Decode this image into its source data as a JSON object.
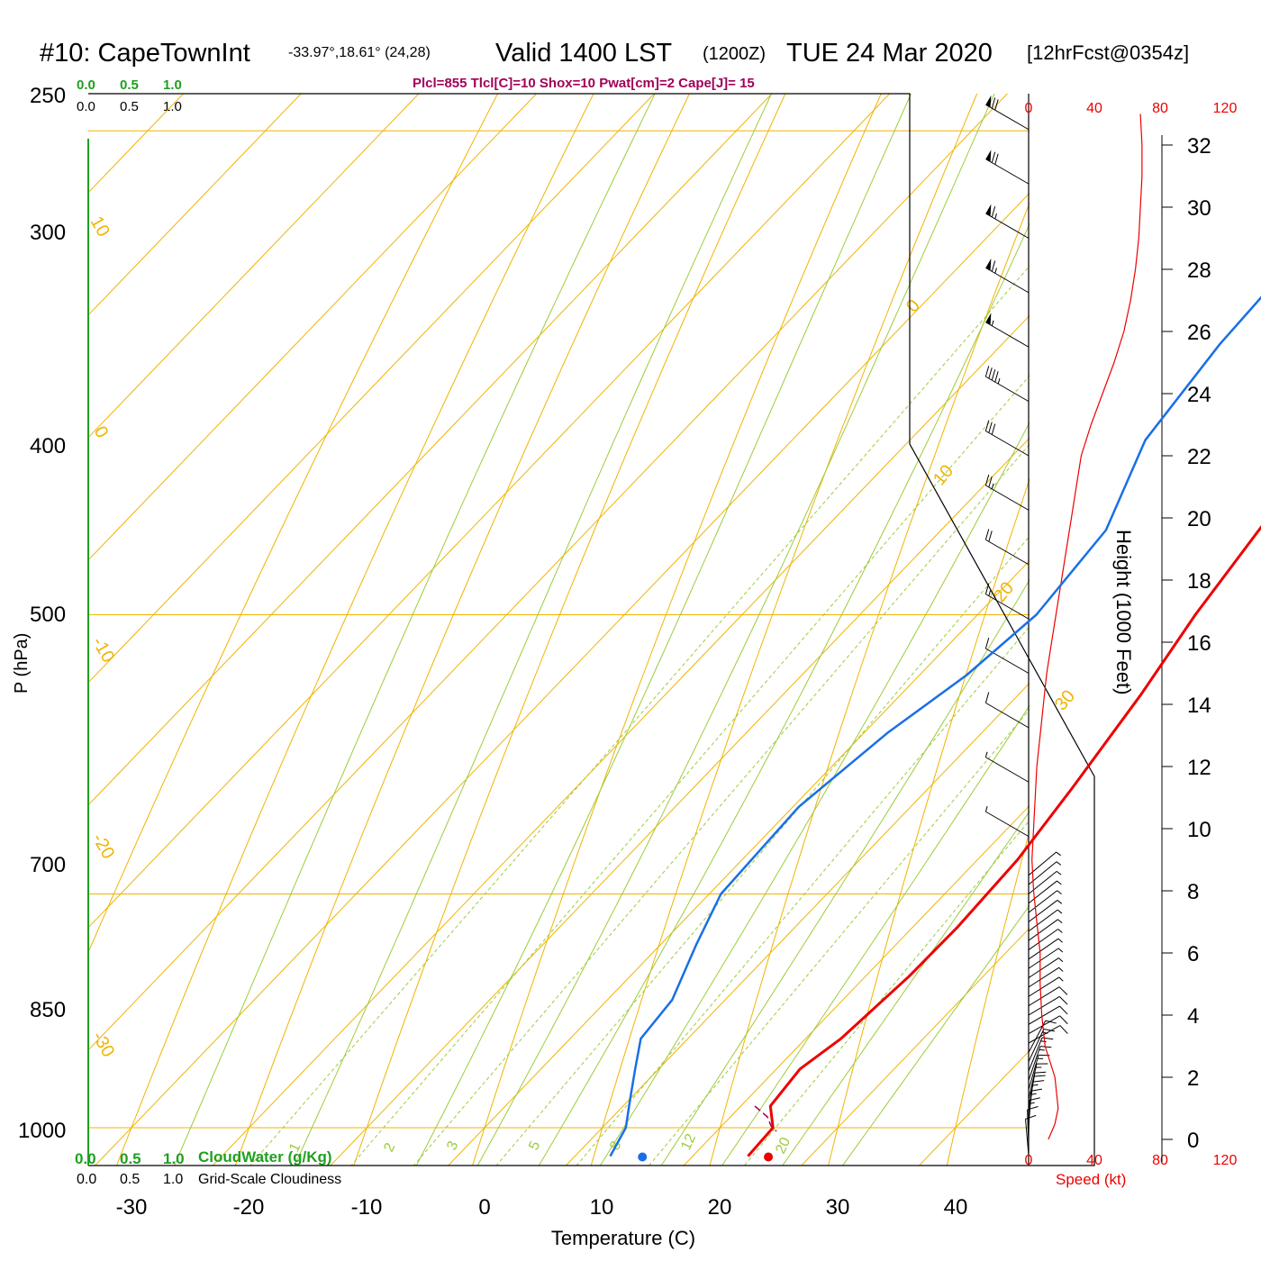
{
  "header": {
    "station": "#10: CapeTownInt",
    "coords": "-33.97°,18.61° (24,28)",
    "valid": "Valid 1400 LST",
    "zulu": "(1200Z)",
    "date": "TUE 24 Mar 2020",
    "forecast": "[12hrFcst@0354z]",
    "indices": "Plcl=855 Tlcl[C]=10 Shox=10 Pwat[cm]=2 Cape[J]= 15"
  },
  "colors": {
    "temperature": "#ee0000",
    "dewpoint": "#1a6fe6",
    "isotherm": "#f0b400",
    "dry_adiabat": "#9ccc3c",
    "mixing_ratio": "#9ccc3c",
    "cloud_axis": "#1fa01f",
    "wind_speed": "#ee0000",
    "indices": "#a0005a"
  },
  "chart_data": {
    "type": "line",
    "title": "#10: CapeTownInt Valid 1400 LST (1200Z) TUE 24 Mar 2020",
    "xlabel": "Temperature (C)",
    "ylabel": "P (hPa)",
    "xlim": [
      -30,
      45
    ],
    "ylim": [
      1000,
      250
    ],
    "x_ticks": [
      "-30",
      "-20",
      "-10",
      "0",
      "10",
      "20",
      "30",
      "40"
    ],
    "y_ticks": [
      "250",
      "300",
      "400",
      "500",
      "700",
      "850",
      "1000"
    ],
    "isotherm_labels": [
      "10",
      "0",
      "-10",
      "-20",
      "-30",
      "0",
      "10",
      "20",
      "30"
    ],
    "mixing_ratio_labels": [
      "1",
      "2",
      "3",
      "5",
      "8",
      "12",
      "20"
    ],
    "series": [
      {
        "name": "Temperature",
        "points": [
          [
            1020,
            24.7
          ],
          [
            1000,
            24.5
          ],
          [
            985,
            22.5
          ],
          [
            960,
            22.0
          ],
          [
            940,
            23.0
          ],
          [
            900,
            23.7
          ],
          [
            870,
            23.8
          ],
          [
            830,
            23.4
          ],
          [
            790,
            22.2
          ],
          [
            740,
            20.4
          ],
          [
            700,
            18.5
          ],
          [
            650,
            16.6
          ],
          [
            600,
            13.4
          ],
          [
            550,
            9.7
          ],
          [
            500,
            5.6
          ],
          [
            450,
            1.3
          ],
          [
            400,
            -3.6
          ],
          [
            370,
            -6.9
          ],
          [
            340,
            -10.4
          ],
          [
            310,
            -14.3
          ],
          [
            290,
            -17.6
          ],
          [
            265,
            -21.5
          ]
        ]
      },
      {
        "name": "Dewpoint",
        "points": [
          [
            1020,
            13.0
          ],
          [
            1000,
            12.0
          ],
          [
            980,
            10.0
          ],
          [
            960,
            8.0
          ],
          [
            940,
            6.0
          ],
          [
            915,
            5.5
          ],
          [
            880,
            3.0
          ],
          [
            850,
            1.0
          ],
          [
            800,
            0.5
          ],
          [
            760,
            2.0
          ],
          [
            730,
            4.0
          ],
          [
            700,
            5.0
          ],
          [
            660,
            4.0
          ],
          [
            620,
            0.0
          ],
          [
            580,
            -1.5
          ],
          [
            550,
            -2.0
          ],
          [
            510,
            -6.0
          ],
          [
            480,
            -13.0
          ],
          [
            465,
            -22.0
          ],
          [
            430,
            -26.5
          ],
          [
            400,
            -20.0
          ],
          [
            370,
            -13.5
          ],
          [
            345,
            -12.8
          ],
          [
            330,
            -14.5
          ],
          [
            305,
            -19.0
          ],
          [
            285,
            -25.0
          ],
          [
            265,
            -29.0
          ]
        ]
      }
    ],
    "parcel_start_temp_c": 26.2,
    "parcel_start_dewpoint_c": 15.5,
    "right_panel": {
      "height_axis_label": "Height (1000 Feet)",
      "height_ticks": [
        "0",
        "2",
        "4",
        "6",
        "8",
        "10",
        "12",
        "14",
        "16",
        "18",
        "20",
        "22",
        "24",
        "26",
        "28",
        "30",
        "32"
      ],
      "speed_ticks": [
        "0",
        "40",
        "80",
        "120"
      ],
      "speed_label": "Speed (kt)",
      "wind_speed_profile": [
        [
          0,
          12
        ],
        [
          0.5,
          16
        ],
        [
          1,
          18
        ],
        [
          2,
          16
        ],
        [
          3,
          10
        ],
        [
          4,
          8
        ],
        [
          5,
          7
        ],
        [
          6,
          7
        ],
        [
          7,
          5
        ],
        [
          8,
          3
        ],
        [
          9,
          2
        ],
        [
          10,
          3
        ],
        [
          11,
          4
        ],
        [
          12,
          5
        ],
        [
          13,
          7
        ],
        [
          14,
          9
        ],
        [
          15,
          11
        ],
        [
          16,
          14
        ],
        [
          17,
          17
        ],
        [
          18,
          20
        ],
        [
          19,
          23
        ],
        [
          20,
          26
        ],
        [
          21,
          29
        ],
        [
          22,
          32
        ],
        [
          23,
          38
        ],
        [
          24,
          45
        ],
        [
          25,
          52
        ],
        [
          26,
          58
        ],
        [
          27,
          62
        ],
        [
          28,
          65
        ],
        [
          29,
          67
        ],
        [
          30,
          68
        ],
        [
          31,
          69
        ],
        [
          32,
          69
        ],
        [
          33,
          68
        ]
      ]
    },
    "cloud_axis": {
      "top_green": [
        "0.0",
        "0.5",
        "1.0"
      ],
      "top_black": [
        "0.0",
        "0.5",
        "1.0"
      ],
      "bottom_green": [
        "0.0",
        "0.5",
        "1.0"
      ],
      "bottom_green_label": "CloudWater (g/Kg)",
      "bottom_black": [
        "0.0",
        "0.5",
        "1.0"
      ],
      "bottom_black_label": "Grid-Scale Cloudiness"
    },
    "grid": true
  }
}
